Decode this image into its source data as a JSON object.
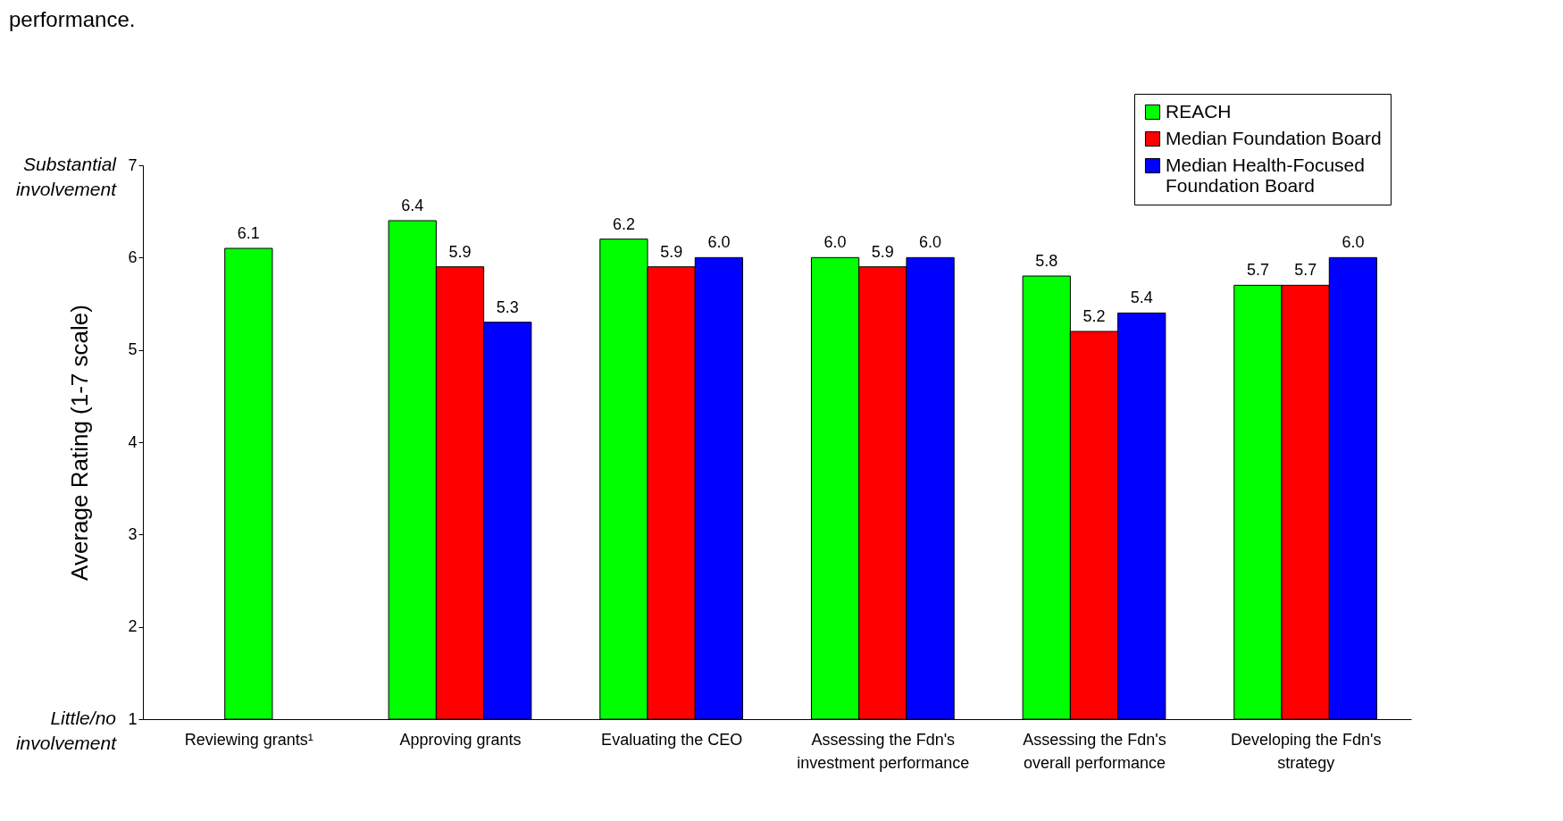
{
  "chart_data": {
    "type": "bar",
    "title": "performance.",
    "ylabel": "Average Rating (1-7 scale)",
    "categories": [
      "Reviewing grants¹",
      "Approving grants",
      "Evaluating the CEO",
      "Assessing the Fdn's investment performance",
      "Assessing the Fdn's overall performance",
      "Developing the Fdn's strategy"
    ],
    "series": [
      {
        "name": "REACH",
        "color": "#00ff00",
        "values": [
          6.1,
          6.4,
          6.2,
          6.0,
          5.8,
          5.7
        ],
        "value_labels": [
          "6.1",
          "6.4",
          "6.2",
          "6.0",
          "5.8",
          "5.7"
        ]
      },
      {
        "name": "Median Foundation Board",
        "color": "#ff0000",
        "values": [
          null,
          5.9,
          5.9,
          5.9,
          5.2,
          5.7
        ],
        "value_labels": [
          null,
          "5.9",
          "5.9",
          "5.9",
          "5.2",
          "5.7"
        ]
      },
      {
        "name": "Median Health-Focused Foundation Board",
        "color": "#0000ff",
        "values": [
          null,
          5.3,
          6.0,
          6.0,
          5.4,
          6.0
        ],
        "value_labels": [
          null,
          "5.3",
          "6.0",
          "6.0",
          "5.4",
          "6.0"
        ]
      }
    ],
    "ylim": [
      1,
      7
    ],
    "yticks": [
      1,
      2,
      3,
      4,
      5,
      6,
      7
    ],
    "grid": false,
    "legend": "top right",
    "annotations": [
      "Substantial involvement",
      "Little/no involvement"
    ]
  }
}
